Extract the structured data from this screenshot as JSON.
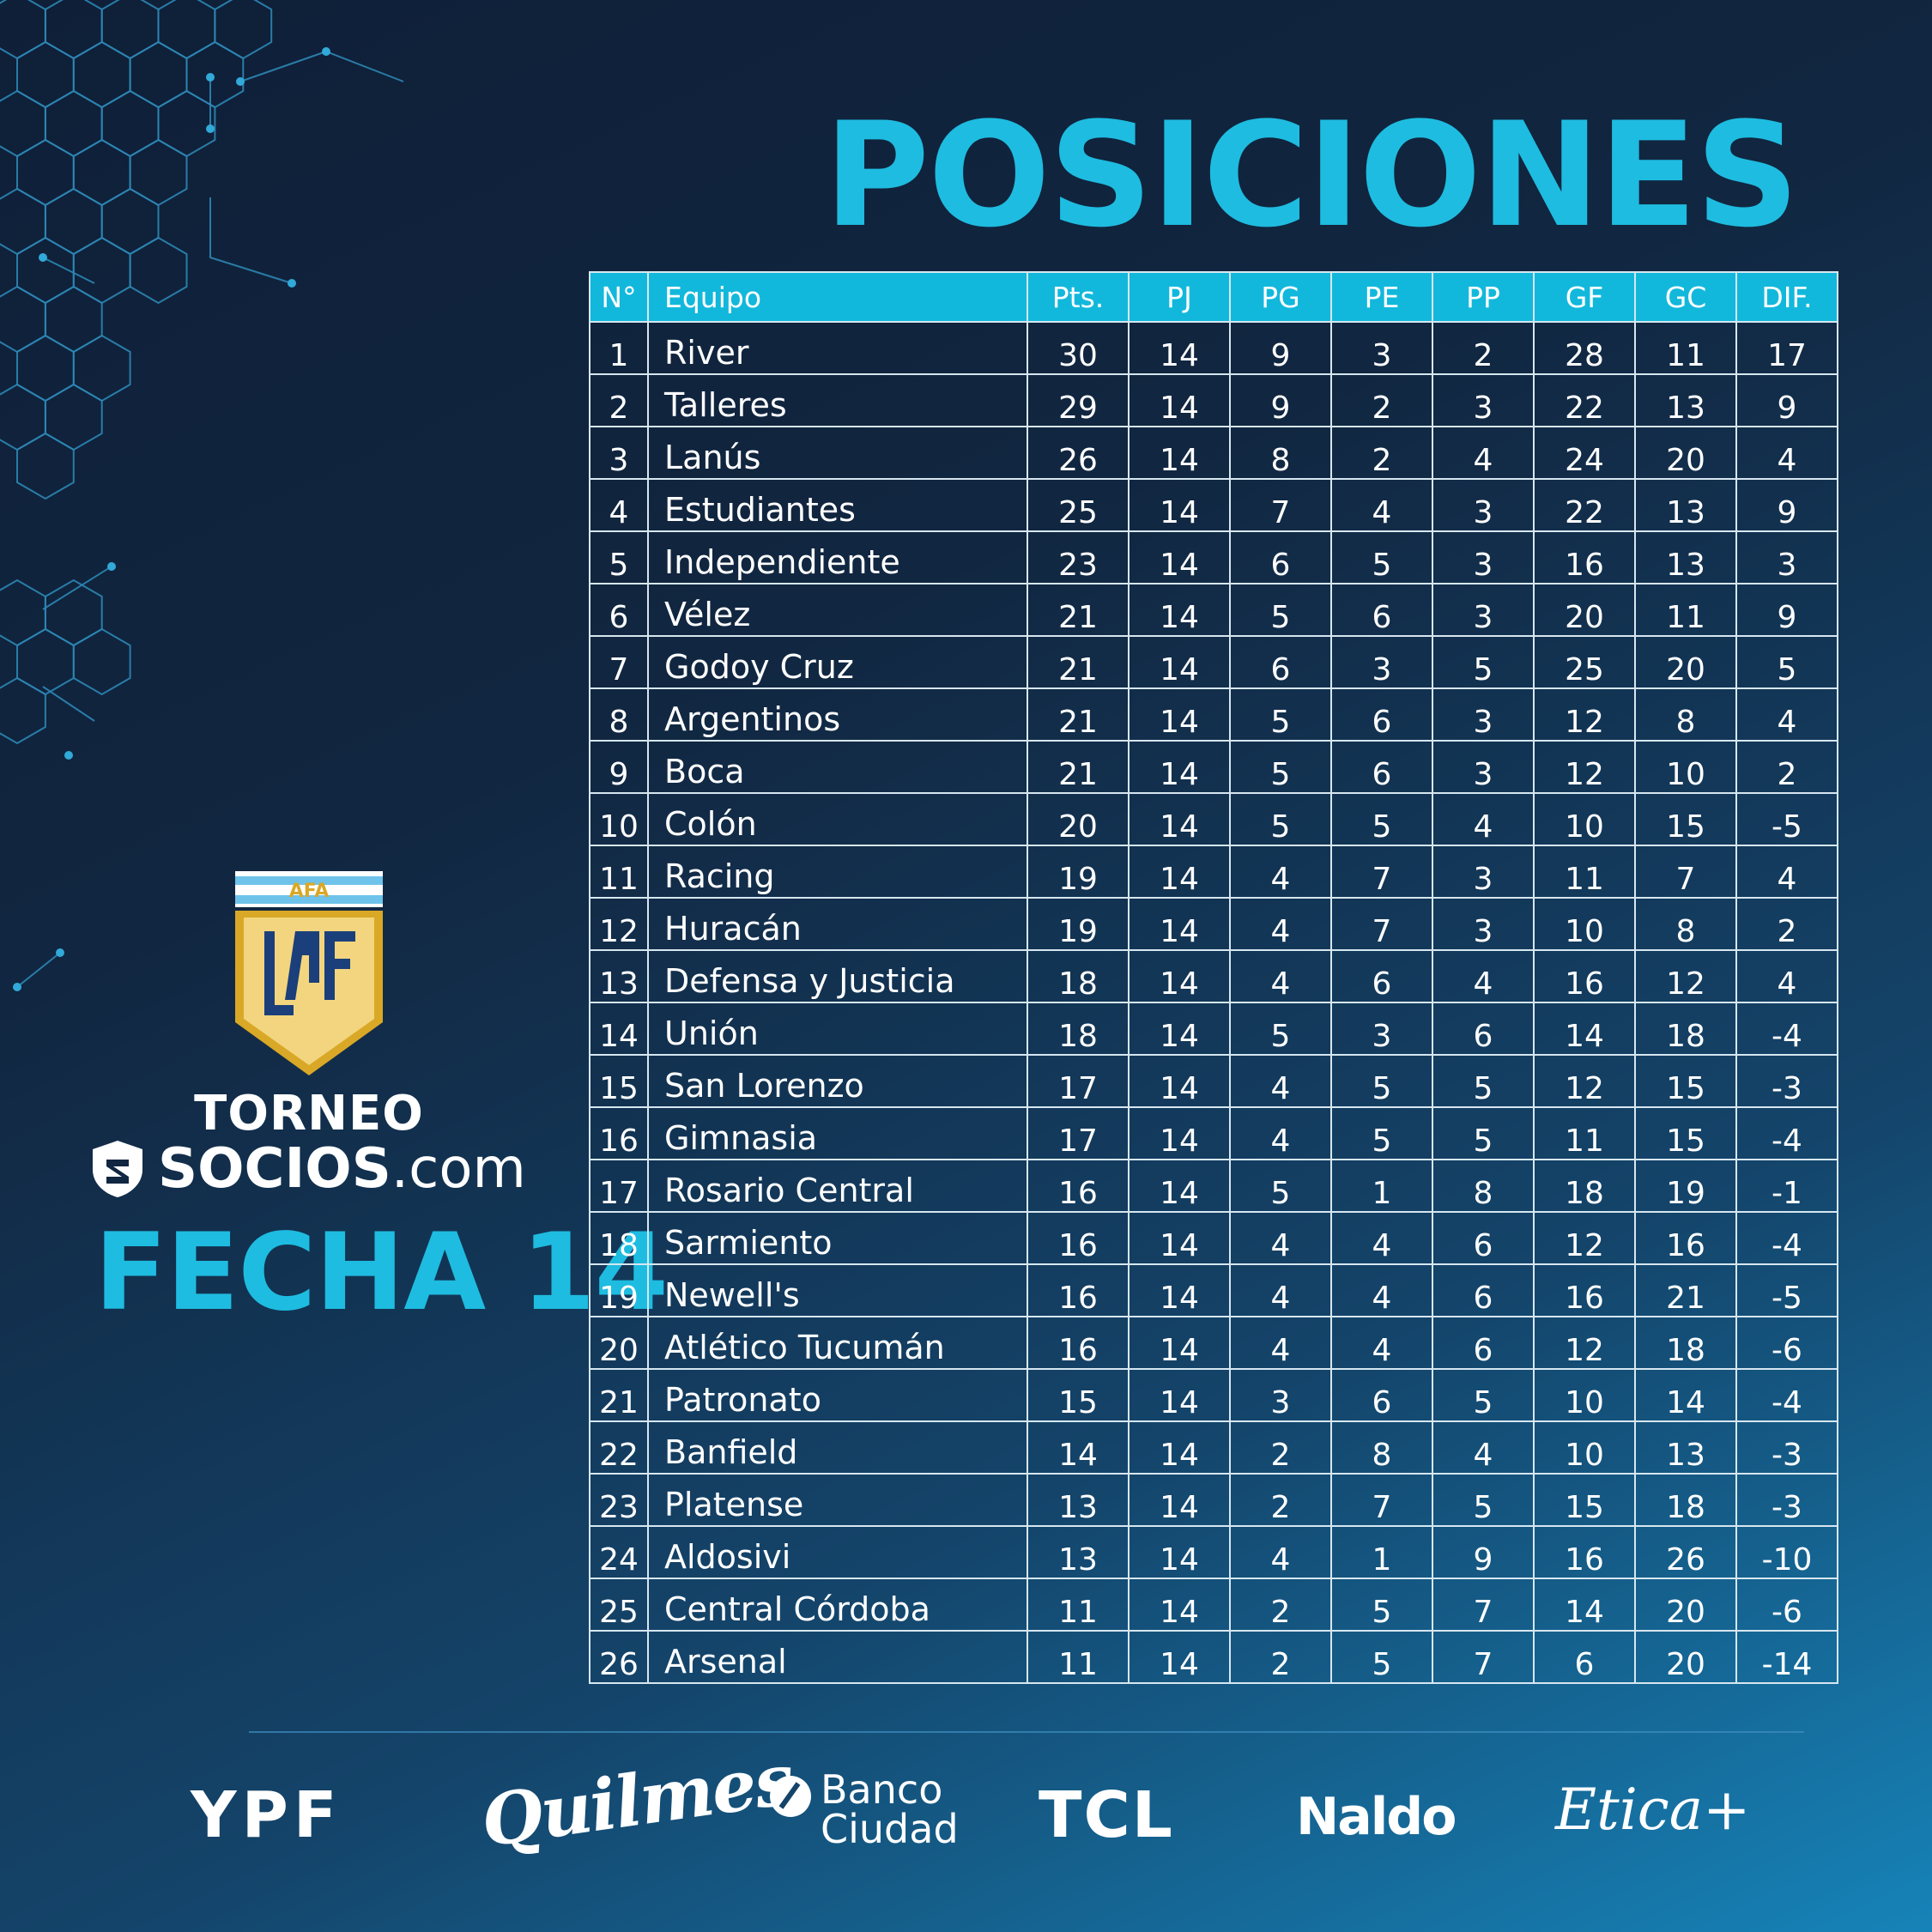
{
  "title": "POSICIONES",
  "league": {
    "badge_text": "AFA",
    "torneo": "TORNEO",
    "sponsor_bold": "SOCIOS",
    "sponsor_light": ".com",
    "round": "FECHA 14"
  },
  "table": {
    "headers": [
      "N°",
      "Equipo",
      "Pts.",
      "PJ",
      "PG",
      "PE",
      "PP",
      "GF",
      "GC",
      "DIF."
    ],
    "rows": [
      [
        "1",
        "River",
        "30",
        "14",
        "9",
        "3",
        "2",
        "28",
        "11",
        "17"
      ],
      [
        "2",
        "Talleres",
        "29",
        "14",
        "9",
        "2",
        "3",
        "22",
        "13",
        "9"
      ],
      [
        "3",
        "Lanús",
        "26",
        "14",
        "8",
        "2",
        "4",
        "24",
        "20",
        "4"
      ],
      [
        "4",
        "Estudiantes",
        "25",
        "14",
        "7",
        "4",
        "3",
        "22",
        "13",
        "9"
      ],
      [
        "5",
        "Independiente",
        "23",
        "14",
        "6",
        "5",
        "3",
        "16",
        "13",
        "3"
      ],
      [
        "6",
        "Vélez",
        "21",
        "14",
        "5",
        "6",
        "3",
        "20",
        "11",
        "9"
      ],
      [
        "7",
        "Godoy Cruz",
        "21",
        "14",
        "6",
        "3",
        "5",
        "25",
        "20",
        "5"
      ],
      [
        "8",
        "Argentinos",
        "21",
        "14",
        "5",
        "6",
        "3",
        "12",
        "8",
        "4"
      ],
      [
        "9",
        "Boca",
        "21",
        "14",
        "5",
        "6",
        "3",
        "12",
        "10",
        "2"
      ],
      [
        "10",
        "Colón",
        "20",
        "14",
        "5",
        "5",
        "4",
        "10",
        "15",
        "-5"
      ],
      [
        "11",
        "Racing",
        "19",
        "14",
        "4",
        "7",
        "3",
        "11",
        "7",
        "4"
      ],
      [
        "12",
        "Huracán",
        "19",
        "14",
        "4",
        "7",
        "3",
        "10",
        "8",
        "2"
      ],
      [
        "13",
        "Defensa y Justicia",
        "18",
        "14",
        "4",
        "6",
        "4",
        "16",
        "12",
        "4"
      ],
      [
        "14",
        "Unión",
        "18",
        "14",
        "5",
        "3",
        "6",
        "14",
        "18",
        "-4"
      ],
      [
        "15",
        "San Lorenzo",
        "17",
        "14",
        "4",
        "5",
        "5",
        "12",
        "15",
        "-3"
      ],
      [
        "16",
        "Gimnasia",
        "17",
        "14",
        "4",
        "5",
        "5",
        "11",
        "15",
        "-4"
      ],
      [
        "17",
        "Rosario Central",
        "16",
        "14",
        "5",
        "1",
        "8",
        "18",
        "19",
        "-1"
      ],
      [
        "18",
        "Sarmiento",
        "16",
        "14",
        "4",
        "4",
        "6",
        "12",
        "16",
        "-4"
      ],
      [
        "19",
        "Newell's",
        "16",
        "14",
        "4",
        "4",
        "6",
        "16",
        "21",
        "-5"
      ],
      [
        "20",
        "Atlético Tucumán",
        "16",
        "14",
        "4",
        "4",
        "6",
        "12",
        "18",
        "-6"
      ],
      [
        "21",
        "Patronato",
        "15",
        "14",
        "3",
        "6",
        "5",
        "10",
        "14",
        "-4"
      ],
      [
        "22",
        "Banfield",
        "14",
        "14",
        "2",
        "8",
        "4",
        "10",
        "13",
        "-3"
      ],
      [
        "23",
        "Platense",
        "13",
        "14",
        "2",
        "7",
        "5",
        "15",
        "18",
        "-3"
      ],
      [
        "24",
        "Aldosivi",
        "13",
        "14",
        "4",
        "1",
        "9",
        "16",
        "26",
        "-10"
      ],
      [
        "25",
        "Central Córdoba",
        "11",
        "14",
        "2",
        "5",
        "7",
        "14",
        "20",
        "-6"
      ],
      [
        "26",
        "Arsenal",
        "11",
        "14",
        "2",
        "5",
        "7",
        "6",
        "20",
        "-14"
      ]
    ]
  },
  "sponsors": {
    "ypf": "YPF",
    "quilmes": "Quilmes",
    "banco_line1": "Banco",
    "banco_line2": "Ciudad",
    "tcl": "TCL",
    "naldo": "Naldo",
    "etica": "Etica+"
  },
  "colors": {
    "accent": "#1ebce0",
    "header_bg": "#12b8dc",
    "shield_gold": "#d9a826",
    "shield_fill": "#f2d57e",
    "shield_blue": "#1b3f7a",
    "flag_blue": "#6ec3ea"
  }
}
